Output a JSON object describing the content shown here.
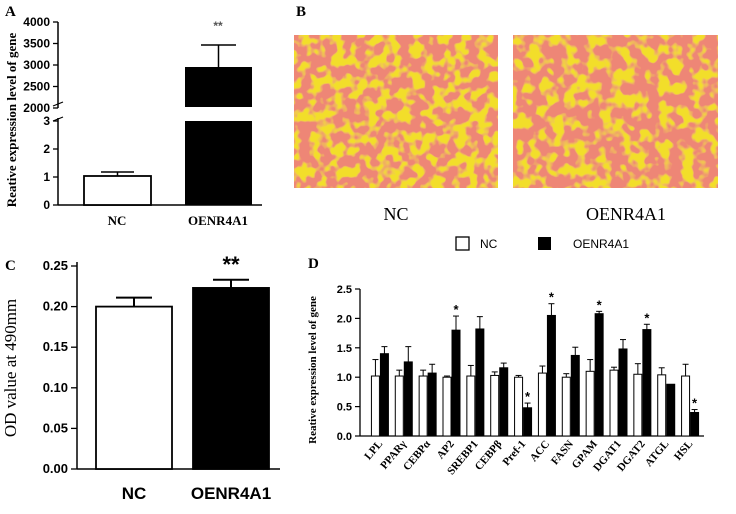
{
  "panel_labels": {
    "a": "A",
    "b": "B",
    "c": "C",
    "d": "D"
  },
  "colors": {
    "black": "#000000",
    "white": "#ffffff",
    "stain_bg": "#f2de2c",
    "stain_dot": "#d8342c"
  },
  "micrographs": {
    "left_label": "NC",
    "right_label": "OENR4A1"
  },
  "chart_data": [
    {
      "id": "A",
      "type": "bar",
      "title": "",
      "ylabel": "Reative expression level of gene",
      "xlabel": "",
      "categories": [
        "NC",
        "OENR4A1"
      ],
      "values": [
        1,
        2980
      ],
      "errors": [
        0.12,
        540
      ],
      "fills": [
        "white",
        "black"
      ],
      "significance": [
        "",
        "**"
      ],
      "axis_break": true,
      "lower_ylim": [
        0,
        3
      ],
      "lower_yticks": [
        "0",
        "1",
        "2",
        "3"
      ],
      "upper_ylim": [
        2000,
        4000
      ],
      "upper_yticks": [
        "2000",
        "2500",
        "3000",
        "3500",
        "4000"
      ]
    },
    {
      "id": "C",
      "type": "bar",
      "title": "",
      "ylabel": "OD value at 490mm",
      "xlabel": "",
      "categories": [
        "NC",
        "OENR4A1"
      ],
      "values": [
        0.2,
        0.223
      ],
      "errors": [
        0.011,
        0.01
      ],
      "fills": [
        "white",
        "black"
      ],
      "significance": [
        "",
        "**"
      ],
      "ylim": [
        0,
        0.25
      ],
      "yticks": [
        "0.00",
        "0.05",
        "0.10",
        "0.15",
        "0.20",
        "0.25"
      ]
    },
    {
      "id": "D",
      "type": "bar",
      "title": "",
      "ylabel": "Reative expression level of gene",
      "xlabel": "",
      "legend": [
        "NC",
        "OENR4A1"
      ],
      "legend_position": "top",
      "categories": [
        "LPL",
        "PPARγ",
        "CEBPα",
        "AP2",
        "SREBP1",
        "CEBPβ",
        "Pref-1",
        "ACC",
        "FASN",
        "GPAM",
        "DGAT1",
        "DGAT2",
        "ATGL",
        "HSL"
      ],
      "series": [
        {
          "name": "NC",
          "fill": "white",
          "values": [
            1.02,
            1.02,
            1.02,
            1.0,
            1.02,
            1.03,
            1.0,
            1.07,
            1.0,
            1.1,
            1.12,
            1.05,
            1.04,
            1.02
          ],
          "errors": [
            0.28,
            0.1,
            0.1,
            0.02,
            0.18,
            0.06,
            0.03,
            0.12,
            0.06,
            0.2,
            0.05,
            0.18,
            0.12,
            0.2
          ]
        },
        {
          "name": "OENR4A1",
          "fill": "black",
          "values": [
            1.4,
            1.26,
            1.07,
            1.8,
            1.82,
            1.16,
            0.48,
            2.05,
            1.37,
            2.08,
            1.48,
            1.81,
            0.88,
            0.4
          ],
          "errors": [
            0.12,
            0.26,
            0.15,
            0.24,
            0.21,
            0.08,
            0.08,
            0.2,
            0.14,
            0.04,
            0.16,
            0.09,
            0.0,
            0.05
          ]
        }
      ],
      "significance": [
        "",
        "",
        "",
        "*",
        "",
        "",
        "*",
        "*",
        "",
        "*",
        "",
        "*",
        "",
        "*"
      ],
      "ylim": [
        0,
        2.5
      ],
      "yticks": [
        "0.0",
        "0.5",
        "1.0",
        "1.5",
        "2.0",
        "2.5"
      ]
    }
  ]
}
